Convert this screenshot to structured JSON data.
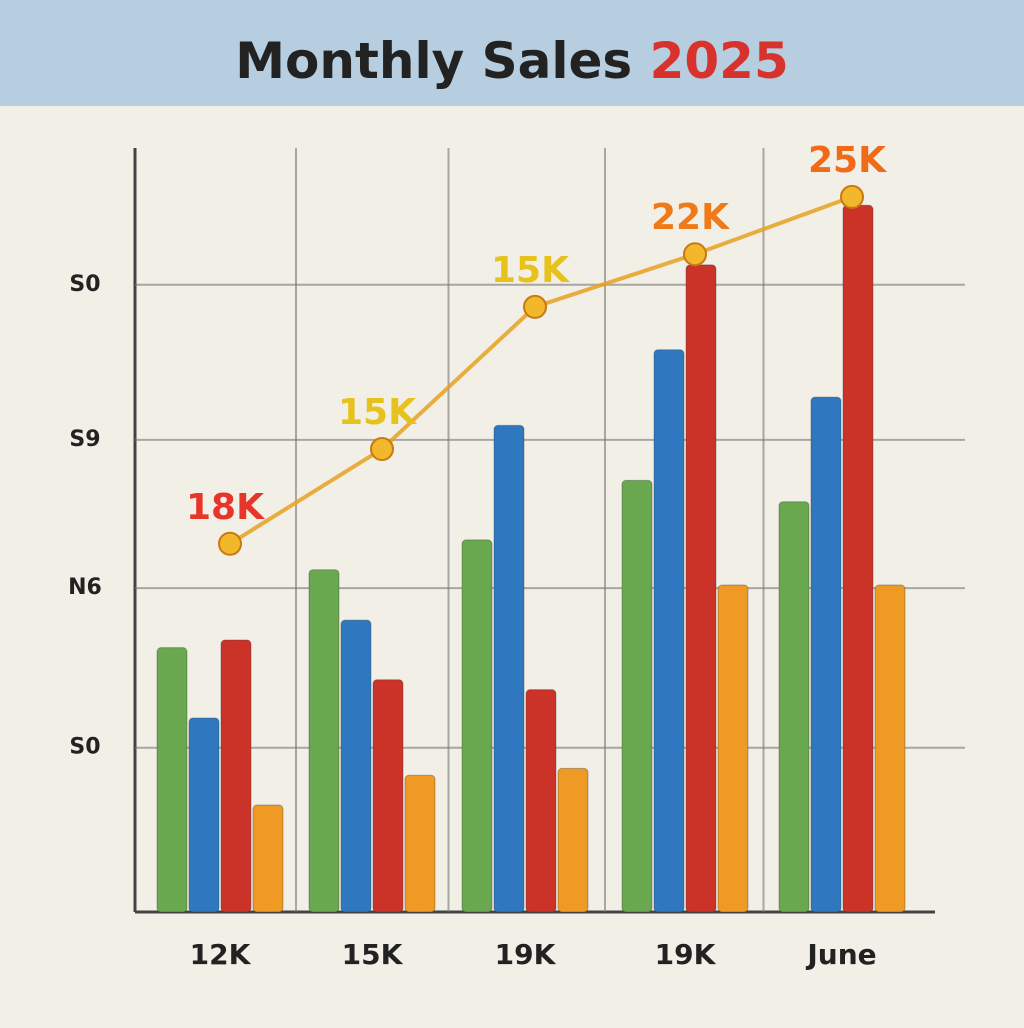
{
  "chart_data": {
    "type": "bar",
    "title": "Monthly Sales",
    "title_highlight": "2025",
    "title_highlight_color": "#d8322c",
    "categories": [
      "12K",
      "15K",
      "19K",
      "19K",
      "June"
    ],
    "ylim": [
      0,
      100
    ],
    "yticks": [
      {
        "value": 21.5,
        "label": "S0"
      },
      {
        "value": 42.4,
        "label": "N6"
      },
      {
        "value": 61.8,
        "label": "S9"
      },
      {
        "value": 82.1,
        "label": "S0"
      }
    ],
    "grid": true,
    "series": [
      {
        "color": "#6aa84f",
        "values": [
          34.6,
          44.8,
          48.7,
          56.5,
          53.7
        ]
      },
      {
        "color": "#2f78c0",
        "values": [
          25.4,
          38.2,
          63.7,
          73.6,
          67.4
        ]
      },
      {
        "color": "#cc3328",
        "values": [
          35.6,
          30.4,
          29.1,
          84.7,
          92.5
        ]
      },
      {
        "color": "#ee9a25",
        "values": [
          14.0,
          17.9,
          18.8,
          42.8,
          42.8
        ]
      }
    ],
    "line": {
      "values": [
        48.2,
        60.6,
        79.2,
        86.1,
        93.6
      ],
      "colors": [
        "#e8352a",
        "#e8c21c",
        "#e8c21c",
        "#f07a18",
        "#f06a18"
      ],
      "annotations": [
        "18K",
        "15K",
        "15K",
        "22K",
        "25K"
      ]
    }
  }
}
